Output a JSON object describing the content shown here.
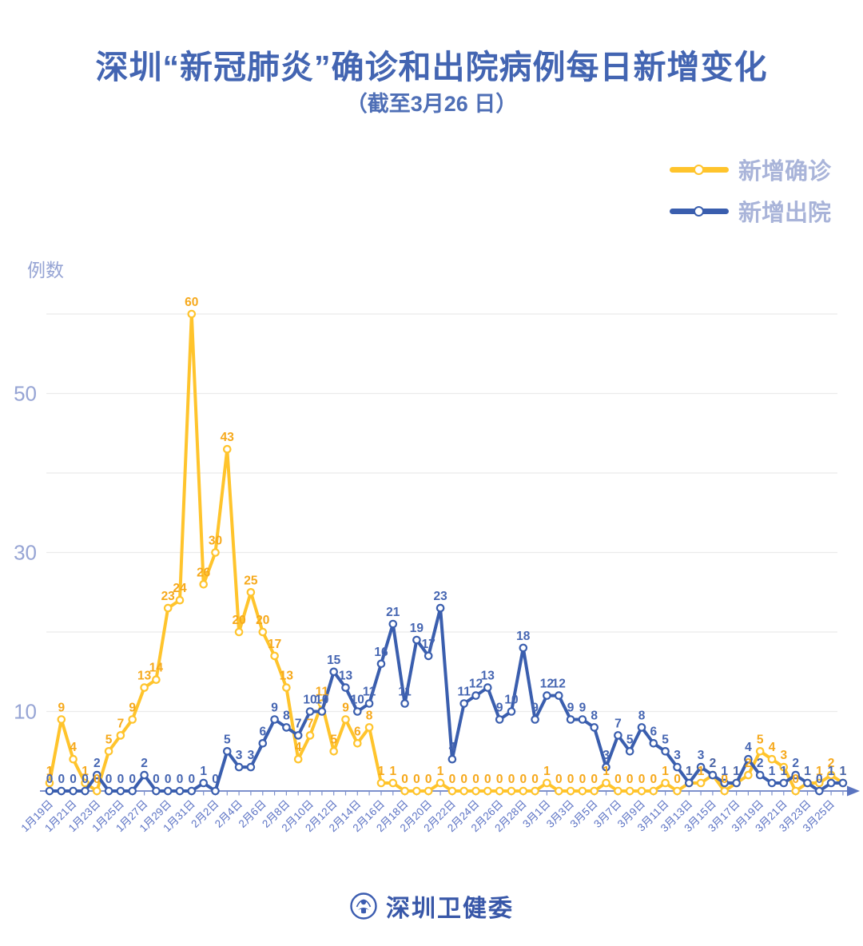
{
  "header": {
    "title": "深圳“新冠肺炎”确诊和出院病例每日新增变化",
    "subtitle": "（截至3月26 日）"
  },
  "legend": {
    "items": [
      {
        "label": "新增确诊",
        "color": "#ffc42c"
      },
      {
        "label": "新增出院",
        "color": "#3a5eae"
      }
    ]
  },
  "footer": {
    "brand": "深圳卫健委",
    "logo": "szhc-emblem"
  },
  "axis_colors": {
    "x_label": "#5c73c4",
    "y_label": "#96a4d4",
    "axis_line": "#7e91cd",
    "grid_line": "#ebebeb"
  },
  "chart_data": {
    "type": "line",
    "title": "深圳“新冠肺炎”确诊和出院病例每日新增变化",
    "subtitle": "（截至3月26 日）",
    "ylabel": "例数",
    "xlabel": "",
    "y_ticks": [
      10,
      30,
      50
    ],
    "ylim": [
      0,
      62
    ],
    "grid": "horizontal lines every 10, from 10 to 60",
    "legend_position": "top-right",
    "x_label_every": 2,
    "x": [
      "1月19日",
      "1月20日",
      "1月21日",
      "1月22日",
      "1月23日",
      "1月24日",
      "1月25日",
      "1月26日",
      "1月27日",
      "1月28日",
      "1月29日",
      "1月30日",
      "1月31日",
      "2月1日",
      "2月2日",
      "2月3日",
      "2月4日",
      "2月5日",
      "2月6日",
      "2月7日",
      "2月8日",
      "2月9日",
      "2月10日",
      "2月11日",
      "2月12日",
      "2月13日",
      "2月14日",
      "2月15日",
      "2月16日",
      "2月17日",
      "2月18日",
      "2月19日",
      "2月20日",
      "2月21日",
      "2月22日",
      "2月23日",
      "2月24日",
      "2月25日",
      "2月26日",
      "2月27日",
      "2月28日",
      "2月29日",
      "3月1日",
      "3月2日",
      "3月3日",
      "3月4日",
      "3月5日",
      "3月6日",
      "3月7日",
      "3月8日",
      "3月9日",
      "3月10日",
      "3月11日",
      "3月12日",
      "3月13日",
      "3月14日",
      "3月15日",
      "3月16日",
      "3月17日",
      "3月18日",
      "3月19日",
      "3月20日",
      "3月21日",
      "3月22日",
      "3月23日",
      "3月24日",
      "3月25日",
      "3月26日"
    ],
    "series": [
      {
        "name": "新增确诊",
        "color": "#ffc42c",
        "label_color": "#f6a91c",
        "values": [
          1,
          9,
          4,
          1,
          0,
          5,
          7,
          9,
          13,
          14,
          23,
          24,
          60,
          26,
          30,
          43,
          20,
          25,
          20,
          17,
          13,
          4,
          7,
          11,
          5,
          9,
          6,
          8,
          1,
          1,
          0,
          0,
          0,
          1,
          0,
          0,
          0,
          0,
          0,
          0,
          0,
          0,
          1,
          0,
          0,
          0,
          0,
          1,
          0,
          0,
          0,
          0,
          1,
          0,
          1,
          1,
          2,
          0,
          1,
          2,
          5,
          4,
          3,
          0,
          1,
          1,
          2,
          1
        ]
      },
      {
        "name": "新增出院",
        "color": "#3a5eae",
        "label_color": "#4666b2",
        "values": [
          0,
          0,
          0,
          0,
          2,
          0,
          0,
          0,
          2,
          0,
          0,
          0,
          0,
          1,
          0,
          5,
          3,
          3,
          6,
          9,
          8,
          7,
          10,
          10,
          15,
          13,
          10,
          11,
          16,
          21,
          11,
          19,
          17,
          23,
          4,
          11,
          12,
          13,
          9,
          10,
          18,
          9,
          12,
          12,
          9,
          9,
          8,
          3,
          7,
          5,
          8,
          6,
          5,
          3,
          1,
          3,
          2,
          1,
          1,
          4,
          2,
          1,
          1,
          2,
          1,
          0,
          1,
          1
        ]
      }
    ]
  }
}
